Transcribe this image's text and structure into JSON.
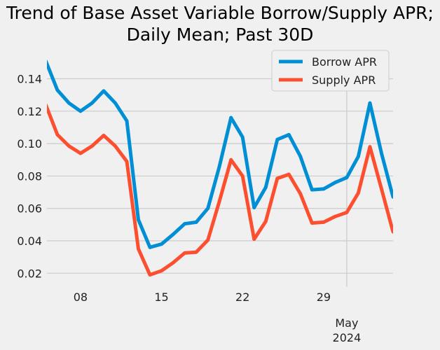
{
  "chart_data": {
    "type": "line",
    "title_lines": [
      "Trend of Base Asset Variable Borrow/Supply APR;",
      "Daily Mean; Past 30D"
    ],
    "xlabel": "",
    "ylabel": "",
    "x_tick_labels": [
      {
        "day": 8,
        "label": "08"
      },
      {
        "day": 15,
        "label": "15"
      },
      {
        "day": 22,
        "label": "22"
      },
      {
        "day": 29,
        "label": "29"
      }
    ],
    "secondary_tick": {
      "day": 31,
      "line1": "May",
      "line2": "2024"
    },
    "xlim": [
      5.1,
      35
    ],
    "ylim": [
      0.0115,
      0.1575
    ],
    "yticks": [
      0.02,
      0.04,
      0.06,
      0.08,
      0.1,
      0.12,
      0.14
    ],
    "ytick_labels": [
      "0.02",
      "0.04",
      "0.06",
      "0.08",
      "0.10",
      "0.12",
      "0.14"
    ],
    "grid": true,
    "legend_position": "top-right",
    "x": [
      5,
      6,
      7,
      8,
      9,
      10,
      11,
      12,
      13,
      14,
      15,
      16,
      17,
      18,
      19,
      20,
      21,
      22,
      23,
      24,
      25,
      26,
      27,
      28,
      29,
      30,
      31,
      32,
      33,
      34,
      35
    ],
    "series": [
      {
        "name": "Borrow APR",
        "color": "#008fd5",
        "values": [
          0.151,
          0.133,
          0.125,
          0.12,
          0.125,
          0.1325,
          0.125,
          0.114,
          0.053,
          0.036,
          0.038,
          0.044,
          0.0505,
          0.0515,
          0.06,
          0.086,
          0.116,
          0.104,
          0.0605,
          0.073,
          0.1025,
          0.1055,
          0.092,
          0.0715,
          0.072,
          0.076,
          0.079,
          0.092,
          0.125,
          0.094,
          0.067
        ]
      },
      {
        "name": "Supply APR",
        "color": "#fc4f30",
        "values": [
          0.124,
          0.1055,
          0.0985,
          0.094,
          0.0985,
          0.105,
          0.0985,
          0.089,
          0.035,
          0.019,
          0.0215,
          0.0265,
          0.0325,
          0.033,
          0.0405,
          0.0645,
          0.09,
          0.08,
          0.041,
          0.052,
          0.0785,
          0.081,
          0.069,
          0.051,
          0.0515,
          0.055,
          0.0575,
          0.0695,
          0.098,
          0.072,
          0.0455
        ]
      }
    ]
  }
}
